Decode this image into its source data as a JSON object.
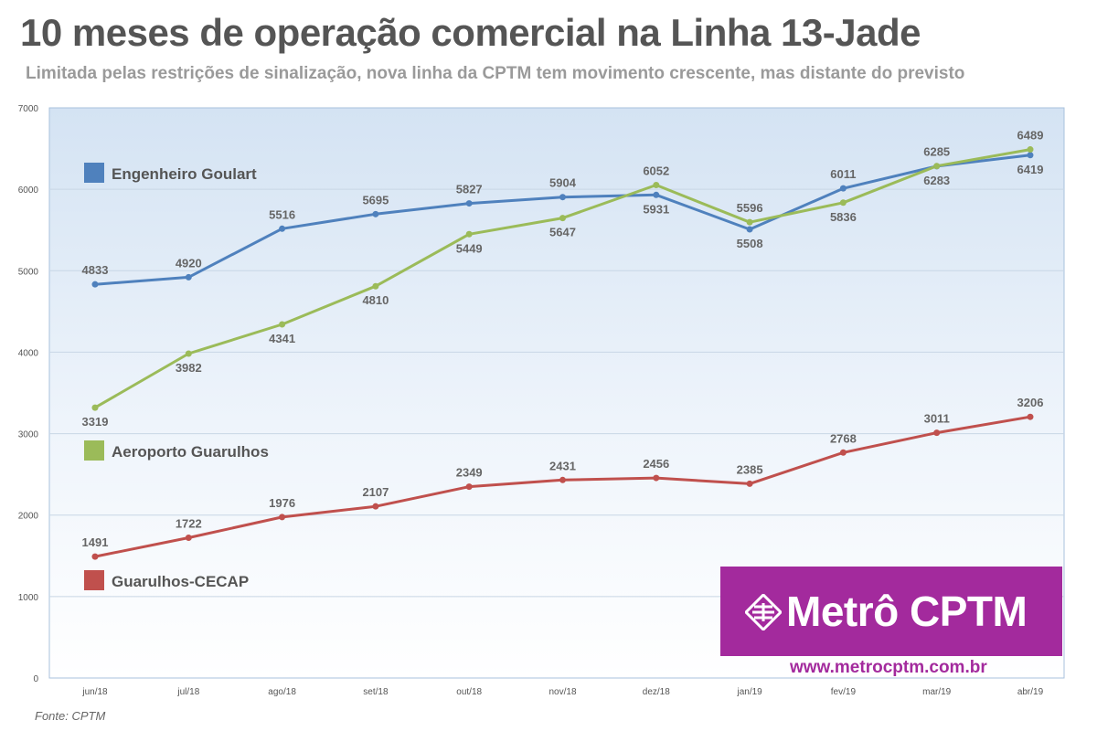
{
  "header": {
    "title": "10 meses de operação comercial na Linha 13-Jade",
    "subtitle": "Limitada pelas restrições de sinalização, nova linha da CPTM tem movimento crescente, mas distante do previsto"
  },
  "footer": {
    "source": "Fonte: CPTM"
  },
  "brand": {
    "name": "Metrô CPTM",
    "url": "www.metrocptm.com.br",
    "color": "#a32a9d"
  },
  "chart_data": {
    "type": "line",
    "categories": [
      "jun/18",
      "jul/18",
      "ago/18",
      "set/18",
      "out/18",
      "nov/18",
      "dez/18",
      "jan/19",
      "fev/19",
      "mar/19",
      "abr/19"
    ],
    "ylim": [
      0,
      7000
    ],
    "yticks": [
      0,
      1000,
      2000,
      3000,
      4000,
      5000,
      6000,
      7000
    ],
    "grid": true,
    "series": [
      {
        "name": "Engenheiro Goulart",
        "color": "#4f81bd",
        "values": [
          4833,
          4920,
          5516,
          5695,
          5827,
          5904,
          5931,
          5508,
          6011,
          6283,
          6419
        ]
      },
      {
        "name": "Aeroporto Guarulhos",
        "color": "#9bbb59",
        "values": [
          3319,
          3982,
          4341,
          4810,
          5449,
          5647,
          6052,
          5596,
          5836,
          6285,
          6489
        ]
      },
      {
        "name": "Guarulhos-CECAP",
        "color": "#c0504d",
        "values": [
          1491,
          1722,
          1976,
          2107,
          2349,
          2431,
          2456,
          2385,
          2768,
          3011,
          3206
        ]
      }
    ]
  }
}
